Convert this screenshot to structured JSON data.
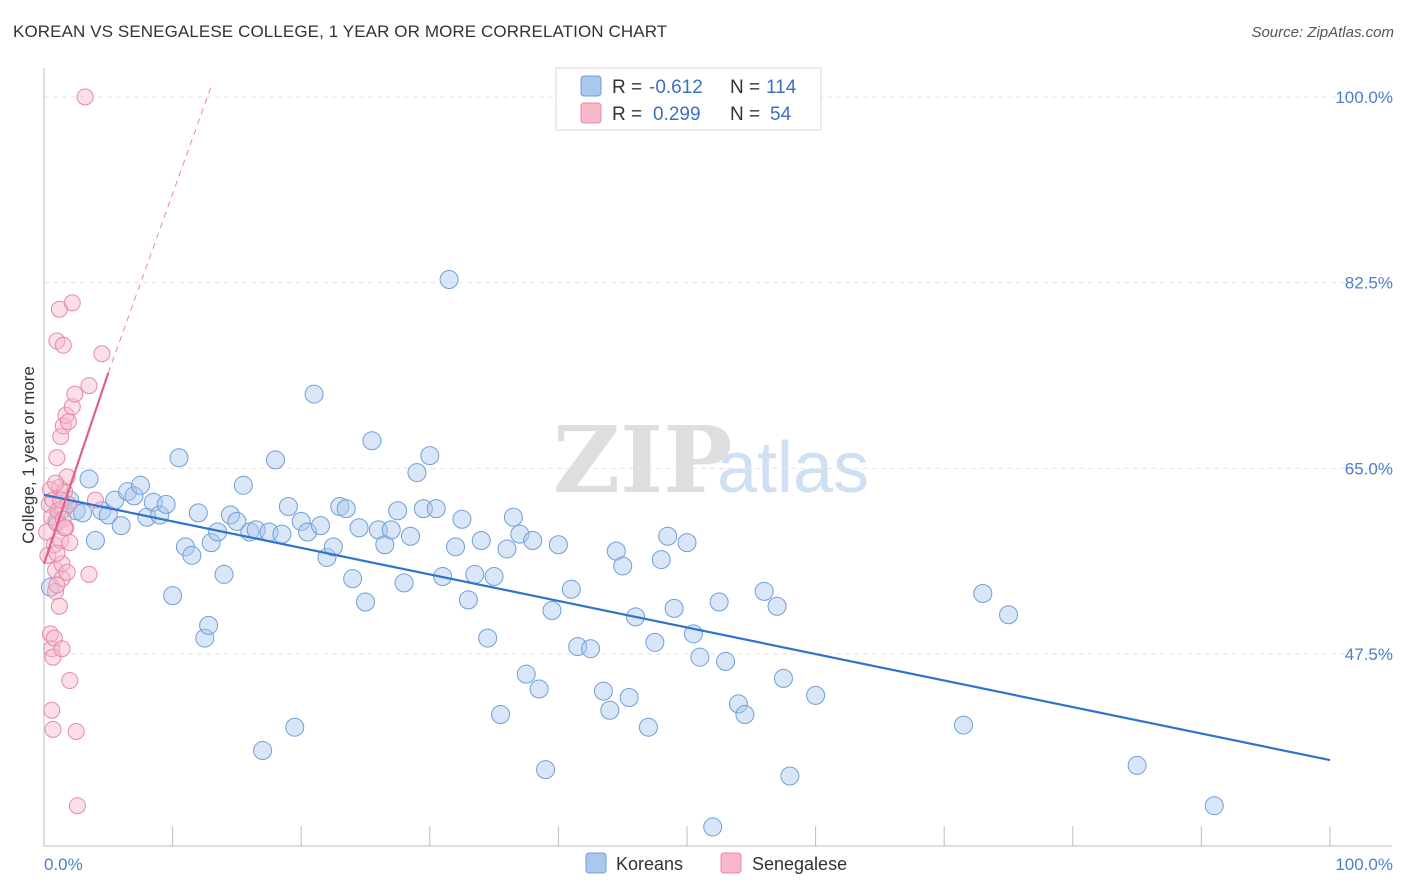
{
  "header": {
    "title": "KOREAN VS SENEGALESE COLLEGE, 1 YEAR OR MORE CORRELATION CHART",
    "source": "Source: ZipAtlas.com"
  },
  "legend": {
    "r_label": "R =",
    "n_label": "N =",
    "koreans": {
      "r": "-0.612",
      "n": "114"
    },
    "senegalese": {
      "r": "0.299",
      "n": "54"
    }
  },
  "bottom_legend": {
    "koreans": "Koreans",
    "senegalese": "Senegalese"
  },
  "watermark": {
    "zip": "ZIP",
    "atlas": "atlas"
  },
  "colors": {
    "koreans_fill": "#aac8ee",
    "koreans_stroke": "#6f9fd8",
    "koreans_line": "#2f73cc",
    "senegalese_fill": "#f6b8ca",
    "senegalese_stroke": "#e889a6",
    "senegalese_line": "#e0608a",
    "tick_label": "#4a7fd0",
    "grid": "#e3e3e3"
  },
  "chart_data": {
    "type": "scatter",
    "title": "KOREAN VS SENEGALESE COLLEGE, 1 YEAR OR MORE CORRELATION CHART",
    "xlabel": "",
    "ylabel": "College, 1 year or more",
    "xlim": [
      0,
      100
    ],
    "ylim": [
      30,
      102
    ],
    "x_tick_labels": [
      "0.0%",
      "100.0%"
    ],
    "y_ticks": [
      47.5,
      65.0,
      82.5,
      100.0
    ],
    "y_tick_labels": [
      "47.5%",
      "65.0%",
      "82.5%",
      "100.0%"
    ],
    "grid": true,
    "legend_position": "top-center",
    "series": [
      {
        "name": "Koreans",
        "r": -0.612,
        "n": 114,
        "trend": [
          [
            0,
            62.5
          ],
          [
            100,
            37.5
          ]
        ],
        "points": [
          [
            0.5,
            53.8
          ],
          [
            1.0,
            60.0
          ],
          [
            1.5,
            61.2
          ],
          [
            2.0,
            62.0
          ],
          [
            2.5,
            61.0
          ],
          [
            3.0,
            60.8
          ],
          [
            3.5,
            64.0
          ],
          [
            4.0,
            58.2
          ],
          [
            4.5,
            61.0
          ],
          [
            5.0,
            60.6
          ],
          [
            5.5,
            62.0
          ],
          [
            6.0,
            59.6
          ],
          [
            6.5,
            62.8
          ],
          [
            7.0,
            62.4
          ],
          [
            7.5,
            63.4
          ],
          [
            8.0,
            60.4
          ],
          [
            8.5,
            61.8
          ],
          [
            9.0,
            60.6
          ],
          [
            9.5,
            61.6
          ],
          [
            10.0,
            53.0
          ],
          [
            10.5,
            66.0
          ],
          [
            11.0,
            57.6
          ],
          [
            11.5,
            56.8
          ],
          [
            12.0,
            60.8
          ],
          [
            12.5,
            49.0
          ],
          [
            12.8,
            50.2
          ],
          [
            13.0,
            58.0
          ],
          [
            13.5,
            59.0
          ],
          [
            14.0,
            55.0
          ],
          [
            14.5,
            60.6
          ],
          [
            15.0,
            60.0
          ],
          [
            15.5,
            63.4
          ],
          [
            16.0,
            59.0
          ],
          [
            16.5,
            59.2
          ],
          [
            17.0,
            38.4
          ],
          [
            17.5,
            59.0
          ],
          [
            18.0,
            65.8
          ],
          [
            18.5,
            58.8
          ],
          [
            19.0,
            61.4
          ],
          [
            19.5,
            40.6
          ],
          [
            20.0,
            60.0
          ],
          [
            20.5,
            59.0
          ],
          [
            21.0,
            72.0
          ],
          [
            21.5,
            59.6
          ],
          [
            22.0,
            56.6
          ],
          [
            22.5,
            57.6
          ],
          [
            23.0,
            61.4
          ],
          [
            23.5,
            61.2
          ],
          [
            24.0,
            54.6
          ],
          [
            24.5,
            59.4
          ],
          [
            25.0,
            52.4
          ],
          [
            25.5,
            67.6
          ],
          [
            26.0,
            59.2
          ],
          [
            26.5,
            57.8
          ],
          [
            27.0,
            59.2
          ],
          [
            27.5,
            61.0
          ],
          [
            28.0,
            54.2
          ],
          [
            28.5,
            58.6
          ],
          [
            29.0,
            64.6
          ],
          [
            29.5,
            61.2
          ],
          [
            30.0,
            66.2
          ],
          [
            30.5,
            61.2
          ],
          [
            31.0,
            54.8
          ],
          [
            31.5,
            82.8
          ],
          [
            32.0,
            57.6
          ],
          [
            32.5,
            60.2
          ],
          [
            33.0,
            52.6
          ],
          [
            33.5,
            55.0
          ],
          [
            34.0,
            58.2
          ],
          [
            34.5,
            49.0
          ],
          [
            35.0,
            54.8
          ],
          [
            35.5,
            41.8
          ],
          [
            36.0,
            57.4
          ],
          [
            36.5,
            60.4
          ],
          [
            37.0,
            58.8
          ],
          [
            37.5,
            45.6
          ],
          [
            38.0,
            58.2
          ],
          [
            38.5,
            44.2
          ],
          [
            39.0,
            36.6
          ],
          [
            39.5,
            51.6
          ],
          [
            40.0,
            57.8
          ],
          [
            41.0,
            53.6
          ],
          [
            41.5,
            48.2
          ],
          [
            42.5,
            48.0
          ],
          [
            43.5,
            44.0
          ],
          [
            44.0,
            42.2
          ],
          [
            44.5,
            57.2
          ],
          [
            45.0,
            55.8
          ],
          [
            45.5,
            43.4
          ],
          [
            46.0,
            51.0
          ],
          [
            47.0,
            40.6
          ],
          [
            47.5,
            48.6
          ],
          [
            48.0,
            56.4
          ],
          [
            48.5,
            58.6
          ],
          [
            49.0,
            51.8
          ],
          [
            50.0,
            58.0
          ],
          [
            50.5,
            49.4
          ],
          [
            51.0,
            47.2
          ],
          [
            52.0,
            31.2
          ],
          [
            52.5,
            52.4
          ],
          [
            53.0,
            46.8
          ],
          [
            54.0,
            42.8
          ],
          [
            54.5,
            41.8
          ],
          [
            56.0,
            53.4
          ],
          [
            57.0,
            52.0
          ],
          [
            57.5,
            45.2
          ],
          [
            58.0,
            36.0
          ],
          [
            60.0,
            43.6
          ],
          [
            71.5,
            40.8
          ],
          [
            73.0,
            53.2
          ],
          [
            75.0,
            51.2
          ],
          [
            85.0,
            37.0
          ],
          [
            91.0,
            33.2
          ]
        ]
      },
      {
        "name": "Senegalese",
        "r": 0.299,
        "n": 54,
        "trend": [
          [
            0,
            56.0
          ],
          [
            5.0,
            74.0
          ]
        ],
        "trend_dashed": [
          [
            5.0,
            74.0
          ],
          [
            13.0,
            101.0
          ]
        ],
        "points": [
          [
            0.2,
            59.0
          ],
          [
            0.3,
            56.8
          ],
          [
            0.4,
            61.6
          ],
          [
            0.5,
            63.0
          ],
          [
            0.6,
            60.4
          ],
          [
            0.7,
            62.0
          ],
          [
            0.8,
            57.8
          ],
          [
            0.9,
            55.4
          ],
          [
            1.0,
            59.8
          ],
          [
            1.1,
            61.0
          ],
          [
            1.2,
            63.2
          ],
          [
            1.3,
            58.2
          ],
          [
            1.4,
            54.6
          ],
          [
            1.5,
            60.2
          ],
          [
            1.6,
            62.8
          ],
          [
            1.7,
            59.4
          ],
          [
            1.8,
            64.2
          ],
          [
            1.9,
            61.6
          ],
          [
            0.5,
            49.4
          ],
          [
            0.6,
            48.0
          ],
          [
            0.7,
            47.2
          ],
          [
            0.8,
            49.0
          ],
          [
            0.9,
            53.4
          ],
          [
            1.0,
            54.0
          ],
          [
            1.2,
            52.0
          ],
          [
            1.4,
            48.0
          ],
          [
            0.6,
            42.2
          ],
          [
            0.7,
            40.4
          ],
          [
            1.0,
            66.0
          ],
          [
            1.3,
            68.0
          ],
          [
            1.5,
            69.0
          ],
          [
            1.7,
            70.0
          ],
          [
            1.9,
            69.4
          ],
          [
            2.2,
            70.8
          ],
          [
            1.0,
            77.0
          ],
          [
            1.2,
            80.0
          ],
          [
            1.5,
            76.6
          ],
          [
            2.2,
            80.6
          ],
          [
            2.4,
            72.0
          ],
          [
            3.5,
            72.8
          ],
          [
            4.0,
            62.0
          ],
          [
            4.5,
            75.8
          ],
          [
            2.5,
            40.2
          ],
          [
            2.6,
            33.2
          ],
          [
            3.2,
            100.0
          ],
          [
            2.0,
            45.0
          ],
          [
            3.5,
            55.0
          ],
          [
            1.4,
            56.0
          ],
          [
            1.0,
            57.0
          ],
          [
            1.3,
            62.0
          ],
          [
            2.0,
            58.0
          ],
          [
            1.8,
            55.2
          ],
          [
            0.9,
            63.6
          ],
          [
            1.6,
            59.4
          ]
        ]
      }
    ]
  }
}
